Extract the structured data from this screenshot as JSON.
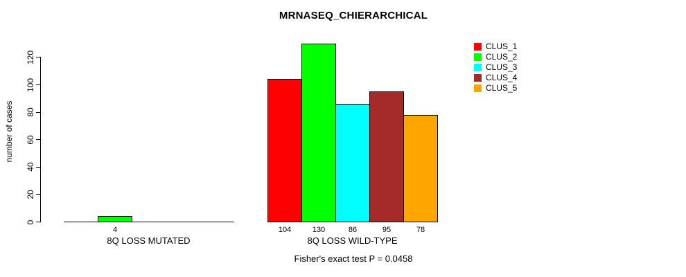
{
  "chart_data": {
    "type": "bar",
    "title": "MRNASEQ_CHIERARCHICAL",
    "ylabel": "number of cases",
    "xlabel": "",
    "ylim": [
      0,
      130
    ],
    "yticks": [
      0,
      20,
      40,
      60,
      80,
      100,
      120
    ],
    "grid": false,
    "legend_position": "top-right",
    "series": [
      {
        "name": "CLUS_1",
        "color": "#FF0000"
      },
      {
        "name": "CLUS_2",
        "color": "#00FF00"
      },
      {
        "name": "CLUS_3",
        "color": "#00FFFF"
      },
      {
        "name": "CLUS_4",
        "color": "#A52A2A"
      },
      {
        "name": "CLUS_5",
        "color": "#FFA500"
      }
    ],
    "groups": [
      {
        "label": "8Q LOSS MUTATED",
        "values": [
          0,
          4,
          0,
          0,
          0
        ],
        "value_labels": [
          "",
          "4",
          "",
          "",
          ""
        ]
      },
      {
        "label": "8Q LOSS WILD-TYPE",
        "values": [
          104,
          130,
          86,
          95,
          78
        ],
        "value_labels": [
          "104",
          "130",
          "86",
          "95",
          "78"
        ]
      }
    ],
    "annotation": "Fisher's exact test P = 0.0458"
  }
}
